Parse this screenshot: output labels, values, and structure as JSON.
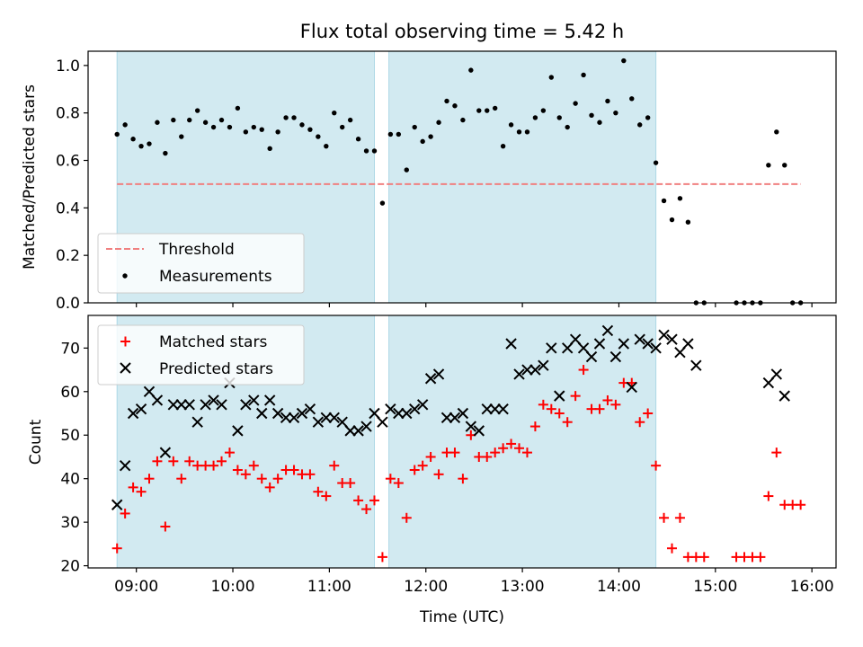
{
  "title": "Flux total observing time = 5.42 h",
  "colors": {
    "shade": "#add8e6",
    "threshold": "#f08080",
    "measurement": "#000000",
    "matched": "#ff0000",
    "predicted": "#000000"
  },
  "chart_data": [
    {
      "type": "scatter",
      "panel": "top",
      "ylabel": "Matched/Predicted stars",
      "ylim": [
        0,
        1.06
      ],
      "yticks": [
        "0.0",
        "0.2",
        "0.4",
        "0.6",
        "0.8",
        "1.0"
      ],
      "xlim": [
        "08:30",
        "16:15"
      ],
      "grid": false,
      "legend_position": "lower-left",
      "shaded_intervals": [
        [
          "08:48",
          "11:28"
        ],
        [
          "11:37",
          "14:23"
        ]
      ],
      "threshold": {
        "name": "Threshold",
        "y": 0.5,
        "x_range": [
          "08:48",
          "15:53"
        ],
        "style": "dashed"
      },
      "series": [
        {
          "name": "Measurements",
          "marker": "dot",
          "points": [
            [
              "08:48",
              0.71
            ],
            [
              "08:53",
              0.75
            ],
            [
              "08:58",
              0.69
            ],
            [
              "09:03",
              0.66
            ],
            [
              "09:08",
              0.67
            ],
            [
              "09:13",
              0.76
            ],
            [
              "09:18",
              0.63
            ],
            [
              "09:23",
              0.77
            ],
            [
              "09:28",
              0.7
            ],
            [
              "09:33",
              0.77
            ],
            [
              "09:38",
              0.81
            ],
            [
              "09:43",
              0.76
            ],
            [
              "09:48",
              0.74
            ],
            [
              "09:53",
              0.77
            ],
            [
              "09:58",
              0.74
            ],
            [
              "10:03",
              0.82
            ],
            [
              "10:08",
              0.72
            ],
            [
              "10:13",
              0.74
            ],
            [
              "10:18",
              0.73
            ],
            [
              "10:23",
              0.65
            ],
            [
              "10:28",
              0.72
            ],
            [
              "10:33",
              0.78
            ],
            [
              "10:38",
              0.78
            ],
            [
              "10:43",
              0.75
            ],
            [
              "10:48",
              0.73
            ],
            [
              "10:53",
              0.7
            ],
            [
              "10:58",
              0.66
            ],
            [
              "11:03",
              0.8
            ],
            [
              "11:08",
              0.74
            ],
            [
              "11:13",
              0.77
            ],
            [
              "11:18",
              0.69
            ],
            [
              "11:23",
              0.64
            ],
            [
              "11:28",
              0.64
            ],
            [
              "11:33",
              0.42
            ],
            [
              "11:38",
              0.71
            ],
            [
              "11:43",
              0.71
            ],
            [
              "11:48",
              0.56
            ],
            [
              "11:53",
              0.74
            ],
            [
              "11:58",
              0.68
            ],
            [
              "12:03",
              0.7
            ],
            [
              "12:08",
              0.76
            ],
            [
              "12:13",
              0.85
            ],
            [
              "12:18",
              0.83
            ],
            [
              "12:23",
              0.77
            ],
            [
              "12:28",
              0.98
            ],
            [
              "12:33",
              0.81
            ],
            [
              "12:38",
              0.81
            ],
            [
              "12:43",
              0.82
            ],
            [
              "12:48",
              0.66
            ],
            [
              "12:53",
              0.75
            ],
            [
              "12:58",
              0.72
            ],
            [
              "13:03",
              0.72
            ],
            [
              "13:08",
              0.78
            ],
            [
              "13:13",
              0.81
            ],
            [
              "13:18",
              0.95
            ],
            [
              "13:23",
              0.78
            ],
            [
              "13:28",
              0.74
            ],
            [
              "13:33",
              0.84
            ],
            [
              "13:38",
              0.96
            ],
            [
              "13:43",
              0.79
            ],
            [
              "13:48",
              0.76
            ],
            [
              "13:53",
              0.85
            ],
            [
              "13:58",
              0.8
            ],
            [
              "14:03",
              1.02
            ],
            [
              "14:08",
              0.86
            ],
            [
              "14:13",
              0.75
            ],
            [
              "14:18",
              0.78
            ],
            [
              "14:23",
              0.59
            ],
            [
              "14:28",
              0.43
            ],
            [
              "14:33",
              0.35
            ],
            [
              "14:38",
              0.44
            ],
            [
              "14:43",
              0.34
            ],
            [
              "14:48",
              0.0
            ],
            [
              "14:53",
              0.0
            ],
            [
              "15:13",
              0.0
            ],
            [
              "15:18",
              0.0
            ],
            [
              "15:23",
              0.0
            ],
            [
              "15:28",
              0.0
            ],
            [
              "15:33",
              0.58
            ],
            [
              "15:38",
              0.72
            ],
            [
              "15:43",
              0.58
            ],
            [
              "15:48",
              0.0
            ],
            [
              "15:53",
              0.0
            ]
          ]
        }
      ]
    },
    {
      "type": "scatter",
      "panel": "bottom",
      "xlabel": "Time (UTC)",
      "ylabel": "Count",
      "ylim": [
        19.5,
        77.5
      ],
      "yticks": [
        "20",
        "30",
        "40",
        "50",
        "60",
        "70"
      ],
      "xlim": [
        "08:30",
        "16:15"
      ],
      "xticks": [
        "09:00",
        "10:00",
        "11:00",
        "12:00",
        "13:00",
        "14:00",
        "15:00",
        "16:00"
      ],
      "grid": false,
      "legend_position": "upper-left",
      "shaded_intervals": [
        [
          "08:48",
          "11:28"
        ],
        [
          "11:37",
          "14:23"
        ]
      ],
      "series": [
        {
          "name": "Matched stars",
          "marker": "plus",
          "points": [
            [
              "08:48",
              24
            ],
            [
              "08:53",
              32
            ],
            [
              "08:58",
              38
            ],
            [
              "09:03",
              37
            ],
            [
              "09:08",
              40
            ],
            [
              "09:13",
              44
            ],
            [
              "09:18",
              29
            ],
            [
              "09:23",
              44
            ],
            [
              "09:28",
              40
            ],
            [
              "09:33",
              44
            ],
            [
              "09:38",
              43
            ],
            [
              "09:43",
              43
            ],
            [
              "09:48",
              43
            ],
            [
              "09:53",
              44
            ],
            [
              "09:58",
              46
            ],
            [
              "10:03",
              42
            ],
            [
              "10:08",
              41
            ],
            [
              "10:13",
              43
            ],
            [
              "10:18",
              40
            ],
            [
              "10:23",
              38
            ],
            [
              "10:28",
              40
            ],
            [
              "10:33",
              42
            ],
            [
              "10:38",
              42
            ],
            [
              "10:43",
              41
            ],
            [
              "10:48",
              41
            ],
            [
              "10:53",
              37
            ],
            [
              "10:58",
              36
            ],
            [
              "11:03",
              43
            ],
            [
              "11:08",
              39
            ],
            [
              "11:13",
              39
            ],
            [
              "11:18",
              35
            ],
            [
              "11:23",
              33
            ],
            [
              "11:28",
              35
            ],
            [
              "11:33",
              22
            ],
            [
              "11:38",
              40
            ],
            [
              "11:43",
              39
            ],
            [
              "11:48",
              31
            ],
            [
              "11:53",
              42
            ],
            [
              "11:58",
              43
            ],
            [
              "12:03",
              45
            ],
            [
              "12:08",
              41
            ],
            [
              "12:13",
              46
            ],
            [
              "12:18",
              46
            ],
            [
              "12:23",
              40
            ],
            [
              "12:28",
              50
            ],
            [
              "12:33",
              45
            ],
            [
              "12:38",
              45
            ],
            [
              "12:43",
              46
            ],
            [
              "12:48",
              47
            ],
            [
              "12:53",
              48
            ],
            [
              "12:58",
              47
            ],
            [
              "13:03",
              46
            ],
            [
              "13:08",
              52
            ],
            [
              "13:13",
              57
            ],
            [
              "13:18",
              56
            ],
            [
              "13:23",
              55
            ],
            [
              "13:28",
              53
            ],
            [
              "13:33",
              59
            ],
            [
              "13:38",
              65
            ],
            [
              "13:43",
              56
            ],
            [
              "13:48",
              56
            ],
            [
              "13:53",
              58
            ],
            [
              "13:58",
              57
            ],
            [
              "14:03",
              62
            ],
            [
              "14:08",
              62
            ],
            [
              "14:13",
              53
            ],
            [
              "14:18",
              55
            ],
            [
              "14:23",
              43
            ],
            [
              "14:28",
              31
            ],
            [
              "14:33",
              24
            ],
            [
              "14:38",
              31
            ],
            [
              "14:43",
              22
            ],
            [
              "14:48",
              22
            ],
            [
              "14:53",
              22
            ],
            [
              "15:13",
              22
            ],
            [
              "15:18",
              22
            ],
            [
              "15:23",
              22
            ],
            [
              "15:28",
              22
            ],
            [
              "15:33",
              36
            ],
            [
              "15:38",
              46
            ],
            [
              "15:43",
              34
            ],
            [
              "15:48",
              34
            ],
            [
              "15:53",
              34
            ]
          ]
        },
        {
          "name": "Predicted stars",
          "marker": "x",
          "points": [
            [
              "08:48",
              34
            ],
            [
              "08:53",
              43
            ],
            [
              "08:58",
              55
            ],
            [
              "09:03",
              56
            ],
            [
              "09:08",
              60
            ],
            [
              "09:13",
              58
            ],
            [
              "09:18",
              46
            ],
            [
              "09:23",
              57
            ],
            [
              "09:28",
              57
            ],
            [
              "09:33",
              57
            ],
            [
              "09:38",
              53
            ],
            [
              "09:43",
              57
            ],
            [
              "09:48",
              58
            ],
            [
              "09:53",
              57
            ],
            [
              "09:58",
              62
            ],
            [
              "10:03",
              51
            ],
            [
              "10:08",
              57
            ],
            [
              "10:13",
              58
            ],
            [
              "10:18",
              55
            ],
            [
              "10:23",
              58
            ],
            [
              "10:28",
              55
            ],
            [
              "10:33",
              54
            ],
            [
              "10:38",
              54
            ],
            [
              "10:43",
              55
            ],
            [
              "10:48",
              56
            ],
            [
              "10:53",
              53
            ],
            [
              "10:58",
              54
            ],
            [
              "11:03",
              54
            ],
            [
              "11:08",
              53
            ],
            [
              "11:13",
              51
            ],
            [
              "11:18",
              51
            ],
            [
              "11:23",
              52
            ],
            [
              "11:28",
              55
            ],
            [
              "11:33",
              53
            ],
            [
              "11:38",
              56
            ],
            [
              "11:43",
              55
            ],
            [
              "11:48",
              55
            ],
            [
              "11:53",
              56
            ],
            [
              "11:58",
              57
            ],
            [
              "12:03",
              63
            ],
            [
              "12:08",
              64
            ],
            [
              "12:13",
              54
            ],
            [
              "12:18",
              54
            ],
            [
              "12:23",
              55
            ],
            [
              "12:28",
              52
            ],
            [
              "12:33",
              51
            ],
            [
              "12:38",
              56
            ],
            [
              "12:43",
              56
            ],
            [
              "12:48",
              56
            ],
            [
              "12:53",
              71
            ],
            [
              "12:58",
              64
            ],
            [
              "13:03",
              65
            ],
            [
              "13:08",
              65
            ],
            [
              "13:13",
              66
            ],
            [
              "13:18",
              70
            ],
            [
              "13:23",
              59
            ],
            [
              "13:28",
              70
            ],
            [
              "13:33",
              72
            ],
            [
              "13:38",
              70
            ],
            [
              "13:43",
              68
            ],
            [
              "13:48",
              71
            ],
            [
              "13:53",
              74
            ],
            [
              "13:58",
              68
            ],
            [
              "14:03",
              71
            ],
            [
              "14:08",
              61
            ],
            [
              "14:13",
              72
            ],
            [
              "14:18",
              71
            ],
            [
              "14:23",
              70
            ],
            [
              "14:28",
              73
            ],
            [
              "14:33",
              72
            ],
            [
              "14:38",
              69
            ],
            [
              "14:43",
              71
            ],
            [
              "14:48",
              66
            ],
            [
              "15:33",
              62
            ],
            [
              "15:38",
              64
            ],
            [
              "15:43",
              59
            ]
          ]
        }
      ]
    }
  ]
}
